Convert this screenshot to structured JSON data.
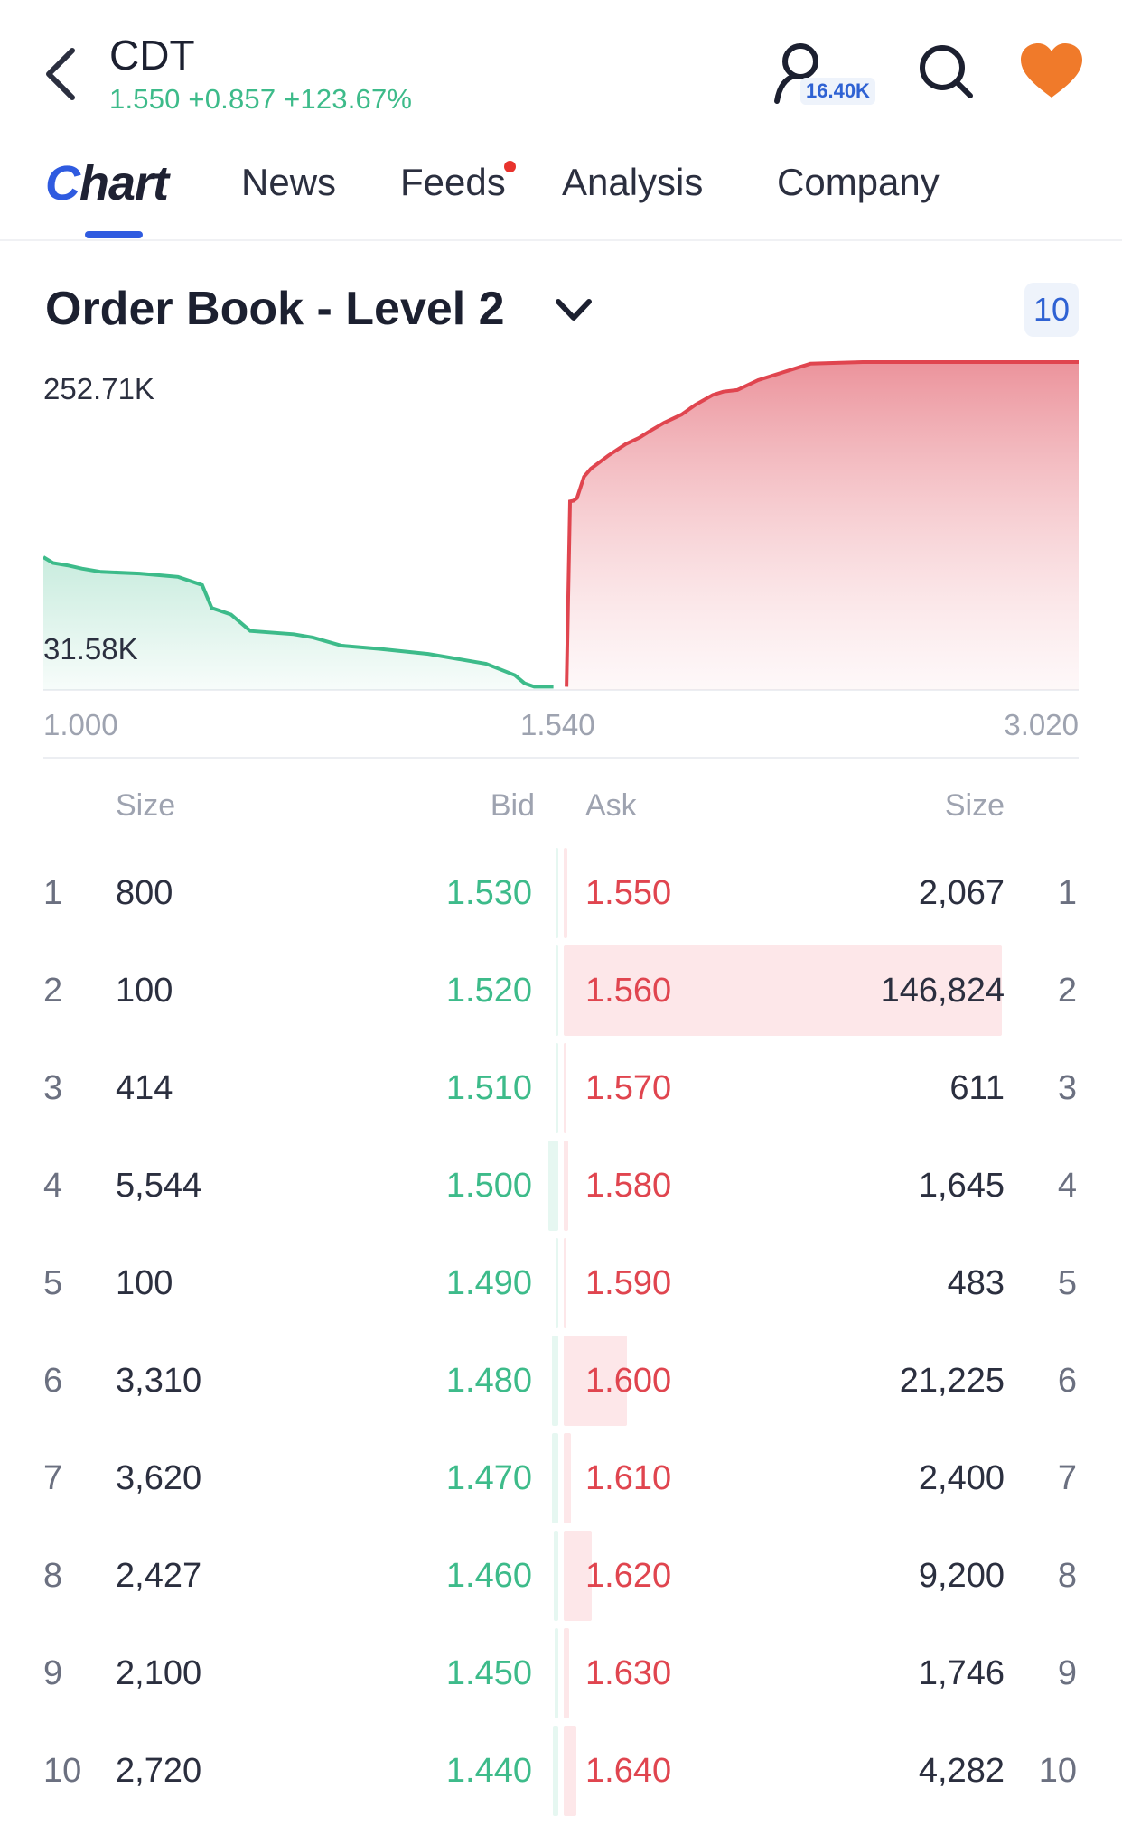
{
  "header": {
    "ticker": "CDT",
    "quote": "1.550 +0.857 +123.67%",
    "followers": "16.40K",
    "icons": {
      "back": "chevron-left-icon",
      "follow": "person-icon",
      "search": "search-icon",
      "favorite": "heart-icon"
    },
    "colors": {
      "up": "#3dbb8a",
      "favorite": "#f07a2a",
      "accent": "#2f5be0"
    }
  },
  "tabs": [
    {
      "label": "Chart",
      "active": true
    },
    {
      "label": "News"
    },
    {
      "label": "Feeds",
      "has_dot": true
    },
    {
      "label": "Analysis"
    },
    {
      "label": "Company"
    }
  ],
  "section": {
    "title": "Order Book - Level 2",
    "depth": "10"
  },
  "chart_data": {
    "type": "area",
    "y_top_label": "252.71K",
    "y_mid_label": "31.58K",
    "x_ticks": [
      "1.000",
      "1.540",
      "3.020"
    ],
    "series": [
      {
        "side": "bid",
        "color": "#3dbb8a",
        "points": [
          [
            1.0,
            0.405
          ],
          [
            1.01,
            0.387
          ],
          [
            1.025,
            0.38
          ],
          [
            1.04,
            0.37
          ],
          [
            1.06,
            0.36
          ],
          [
            1.1,
            0.355
          ],
          [
            1.14,
            0.345
          ],
          [
            1.165,
            0.32
          ],
          [
            1.175,
            0.25
          ],
          [
            1.195,
            0.23
          ],
          [
            1.215,
            0.18
          ],
          [
            1.26,
            0.17
          ],
          [
            1.28,
            0.16
          ],
          [
            1.31,
            0.135
          ],
          [
            1.35,
            0.125
          ],
          [
            1.4,
            0.11
          ],
          [
            1.46,
            0.08
          ],
          [
            1.49,
            0.045
          ],
          [
            1.5,
            0.02
          ],
          [
            1.51,
            0.01
          ],
          [
            1.53,
            0.01
          ]
        ]
      },
      {
        "side": "ask",
        "color": "#e0454f",
        "points": [
          [
            1.55,
            0.01
          ],
          [
            1.56,
            0.575
          ],
          [
            1.57,
            0.577
          ],
          [
            1.58,
            0.585
          ],
          [
            1.6,
            0.65
          ],
          [
            1.62,
            0.675
          ],
          [
            1.67,
            0.715
          ],
          [
            1.72,
            0.75
          ],
          [
            1.76,
            0.77
          ],
          [
            1.79,
            0.79
          ],
          [
            1.83,
            0.815
          ],
          [
            1.88,
            0.84
          ],
          [
            1.92,
            0.87
          ],
          [
            1.97,
            0.9
          ],
          [
            2.0,
            0.91
          ],
          [
            2.04,
            0.915
          ],
          [
            2.1,
            0.945
          ],
          [
            2.25,
            0.995
          ],
          [
            2.4,
            1.0
          ],
          [
            2.6,
            1.0
          ],
          [
            3.02,
            1.0
          ]
        ]
      }
    ],
    "x_range": [
      1.0,
      3.02
    ]
  },
  "table": {
    "headers": {
      "bid_size": "Size",
      "bid": "Bid",
      "ask": "Ask",
      "ask_size": "Size"
    },
    "rows": [
      {
        "rank": "1",
        "bid_size": "800",
        "bid": "1.530",
        "ask": "1.550",
        "ask_size": "2,067",
        "bid_bar": 0.0,
        "ask_bar": 0.008
      },
      {
        "rank": "2",
        "bid_size": "100",
        "bid": "1.520",
        "ask": "1.560",
        "ask_size": "146,824",
        "bid_bar": 0.0,
        "ask_bar": 1.0
      },
      {
        "rank": "3",
        "bid_size": "414",
        "bid": "1.510",
        "ask": "1.570",
        "ask_size": "611",
        "bid_bar": 0.0,
        "ask_bar": 0.004
      },
      {
        "rank": "4",
        "bid_size": "5,544",
        "bid": "1.500",
        "ask": "1.580",
        "ask_size": "1,645",
        "bid_bar": 0.036,
        "ask_bar": 0.011
      },
      {
        "rank": "5",
        "bid_size": "100",
        "bid": "1.490",
        "ask": "1.590",
        "ask_size": "483",
        "bid_bar": 0.0,
        "ask_bar": 0.003
      },
      {
        "rank": "6",
        "bid_size": "3,310",
        "bid": "1.480",
        "ask": "1.600",
        "ask_size": "21,225",
        "bid_bar": 0.022,
        "ask_bar": 0.145
      },
      {
        "rank": "7",
        "bid_size": "3,620",
        "bid": "1.470",
        "ask": "1.610",
        "ask_size": "2,400",
        "bid_bar": 0.025,
        "ask_bar": 0.016
      },
      {
        "rank": "8",
        "bid_size": "2,427",
        "bid": "1.460",
        "ask": "1.620",
        "ask_size": "9,200",
        "bid_bar": 0.017,
        "ask_bar": 0.063
      },
      {
        "rank": "9",
        "bid_size": "2,100",
        "bid": "1.450",
        "ask": "1.630",
        "ask_size": "1,746",
        "bid_bar": 0.014,
        "ask_bar": 0.012
      },
      {
        "rank": "10",
        "bid_size": "2,720",
        "bid": "1.440",
        "ask": "1.640",
        "ask_size": "4,282",
        "bid_bar": 0.019,
        "ask_bar": 0.029
      }
    ]
  }
}
